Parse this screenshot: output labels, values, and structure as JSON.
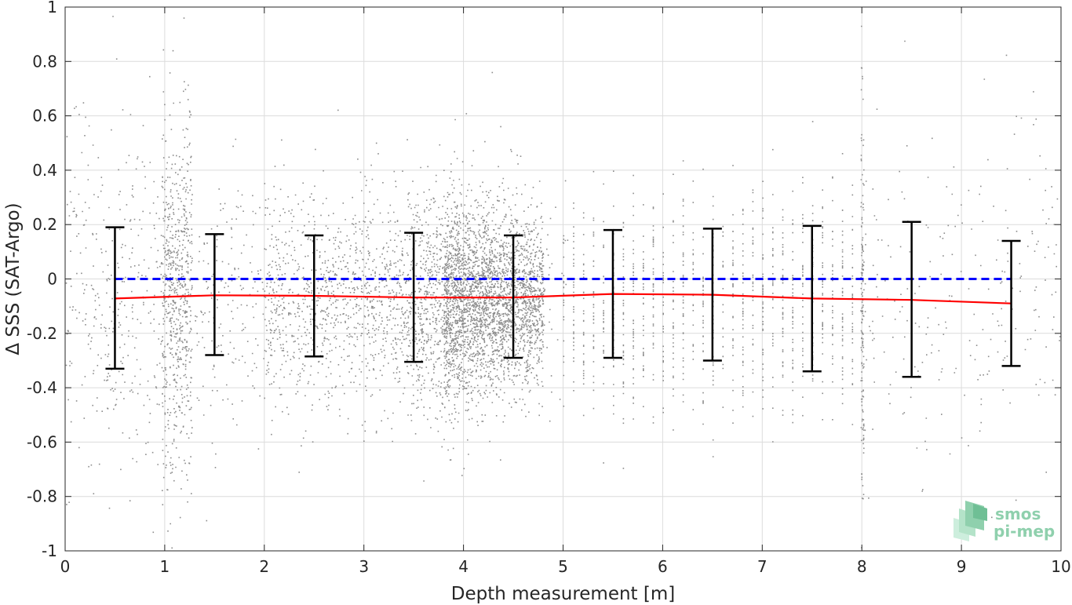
{
  "chart_data": {
    "type": "scatter",
    "title": "",
    "xlabel": "Depth measurement [m]",
    "ylabel": "Δ SSS (SAT-Argo)",
    "xlim": [
      0,
      10
    ],
    "ylim": [
      -1,
      1
    ],
    "x_ticks": [
      "0",
      "1",
      "2",
      "3",
      "4",
      "5",
      "6",
      "7",
      "8",
      "9",
      "10"
    ],
    "y_ticks": [
      "1",
      "0.8",
      "0.6",
      "0.4",
      "0.2",
      "0",
      "-0.2",
      "-0.4",
      "-0.6",
      "-0.8",
      "-1"
    ],
    "grid": true,
    "colors": {
      "scatter": "#8c8c8c",
      "mean_line": "#ff0000",
      "zero_line": "#0000ff",
      "error_bars": "#000000"
    },
    "series": [
      {
        "type": "errorbar",
        "x": [
          0.5,
          1.5,
          2.5,
          3.5,
          4.5,
          5.5,
          6.5,
          7.5,
          8.5,
          9.5
        ],
        "upper": [
          0.19,
          0.165,
          0.16,
          0.17,
          0.16,
          0.18,
          0.185,
          0.195,
          0.21,
          0.14
        ],
        "lower": [
          -0.33,
          -0.28,
          -0.285,
          -0.305,
          -0.29,
          -0.29,
          -0.3,
          -0.34,
          -0.36,
          -0.32
        ]
      },
      {
        "type": "line",
        "x": [
          0.5,
          1.5,
          2.5,
          3.5,
          4.5,
          5.5,
          6.5,
          7.5,
          8.5,
          9.5
        ],
        "y": [
          -0.072,
          -0.06,
          -0.062,
          -0.068,
          -0.068,
          -0.055,
          -0.058,
          -0.072,
          -0.077,
          -0.09
        ]
      },
      {
        "type": "line",
        "style": "dashed",
        "x": [
          0.5,
          9.5
        ],
        "y": [
          0,
          0
        ]
      },
      {
        "type": "scatter",
        "description_density": "dense grey points around -0.1, concentrated near depths 1.1, 2.5-5, and vertical bands at discrete depths 5-8"
      }
    ]
  },
  "logo": {
    "line1": "smos",
    "line2": "pi-mep"
  }
}
